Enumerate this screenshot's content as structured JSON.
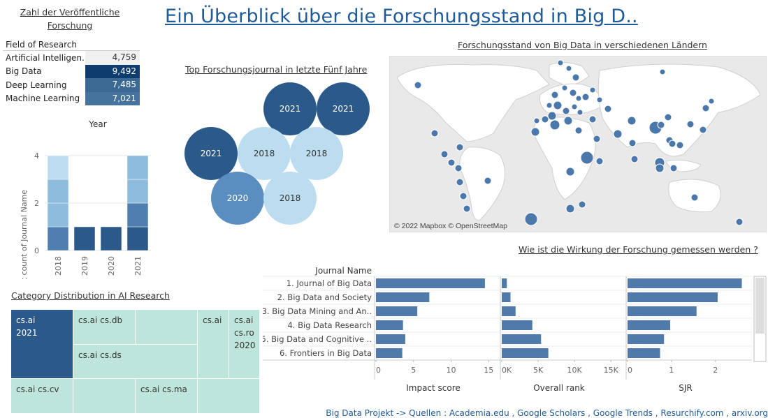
{
  "page": {
    "title": "Ein Überblick über die Forschungsstand in Big D..",
    "footer": "Big Data Projekt ->  Quellen : Academia.edu , Google Scholars , Google Trends , Resurchify.com , arxiv.org"
  },
  "colors": {
    "dark": "#2b5a8a",
    "mid": "#4f7fb0",
    "light": "#8dbbdc",
    "pale": "#bcdcf0",
    "teal": "#bde5dc",
    "title": "#1f5a99"
  },
  "chart_data": [
    {
      "type": "table",
      "title": "Zahl der Veröffentliche Forschung",
      "header": "Field of Research",
      "rows": [
        {
          "label": "Artificial Intelligen..",
          "value": "4,759",
          "num": 4759
        },
        {
          "label": "Big Data",
          "value": "9,492",
          "num": 9492
        },
        {
          "label": "Deep Learning",
          "value": "7,485",
          "num": 7485
        },
        {
          "label": "Machine Learning",
          "value": "7,021",
          "num": 7021
        }
      ]
    },
    {
      "type": "bar",
      "title": "Year",
      "ylabel": "Distinct count of Journal Name",
      "categories": [
        "2018",
        "2019",
        "2020",
        "2021"
      ],
      "values": [
        4,
        1,
        1,
        4
      ],
      "ylim": [
        0,
        4
      ],
      "yticks": [
        "0",
        "2",
        "4"
      ]
    },
    {
      "type": "scatter",
      "title": "Top Forschungsjournal in letzte Fünf Jahre",
      "bubbles": [
        "2021",
        "2021",
        "2021",
        "2018",
        "2018",
        "2020",
        "2018"
      ]
    },
    {
      "type": "scatter",
      "title": "Forschungsstand von Big Data in verschiedenen Ländern",
      "attribution": "© 2022 Mapbox © OpenStreetMap"
    },
    {
      "type": "bar",
      "title": "Wie ist die Wirkung der Forschung gemessen werden ?",
      "row_header": "Journal Name",
      "categories": [
        "1. Journal of Big Data",
        "2. Big Data and Society",
        "3. Big Data Mining and An..",
        "4. Big Data Research",
        "5. Big Data and Cognitive ..",
        "6. Frontiers in Big Data"
      ],
      "series": [
        {
          "name": "Impact score",
          "values": [
            14.5,
            7.1,
            5.5,
            3.6,
            3.9,
            3.5
          ],
          "ticks": [
            "0",
            "5",
            "10",
            "15"
          ],
          "max": 15
        },
        {
          "name": "Overall rank",
          "values": [
            700,
            1200,
            1900,
            4200,
            5400,
            6400
          ],
          "ticks": [
            "0K",
            "5K",
            "10K",
            "15K"
          ],
          "max": 15000
        },
        {
          "name": "SJR",
          "values": [
            2.6,
            2.05,
            1.57,
            0.97,
            0.83,
            0.74
          ],
          "ticks": [
            "0",
            "1",
            "2"
          ],
          "max": 2
        }
      ]
    },
    {
      "type": "heatmap",
      "title": "Category Distribution in AI Research",
      "cells": [
        "cs.ai\n2021",
        "cs.ai cs.db",
        "",
        "cs.ai",
        "cs.ai\ncs.ro\n2020",
        "cs.ai cs.ds",
        "cs.ai cs.cv",
        "",
        "cs.ai cs.ma",
        ""
      ]
    }
  ]
}
